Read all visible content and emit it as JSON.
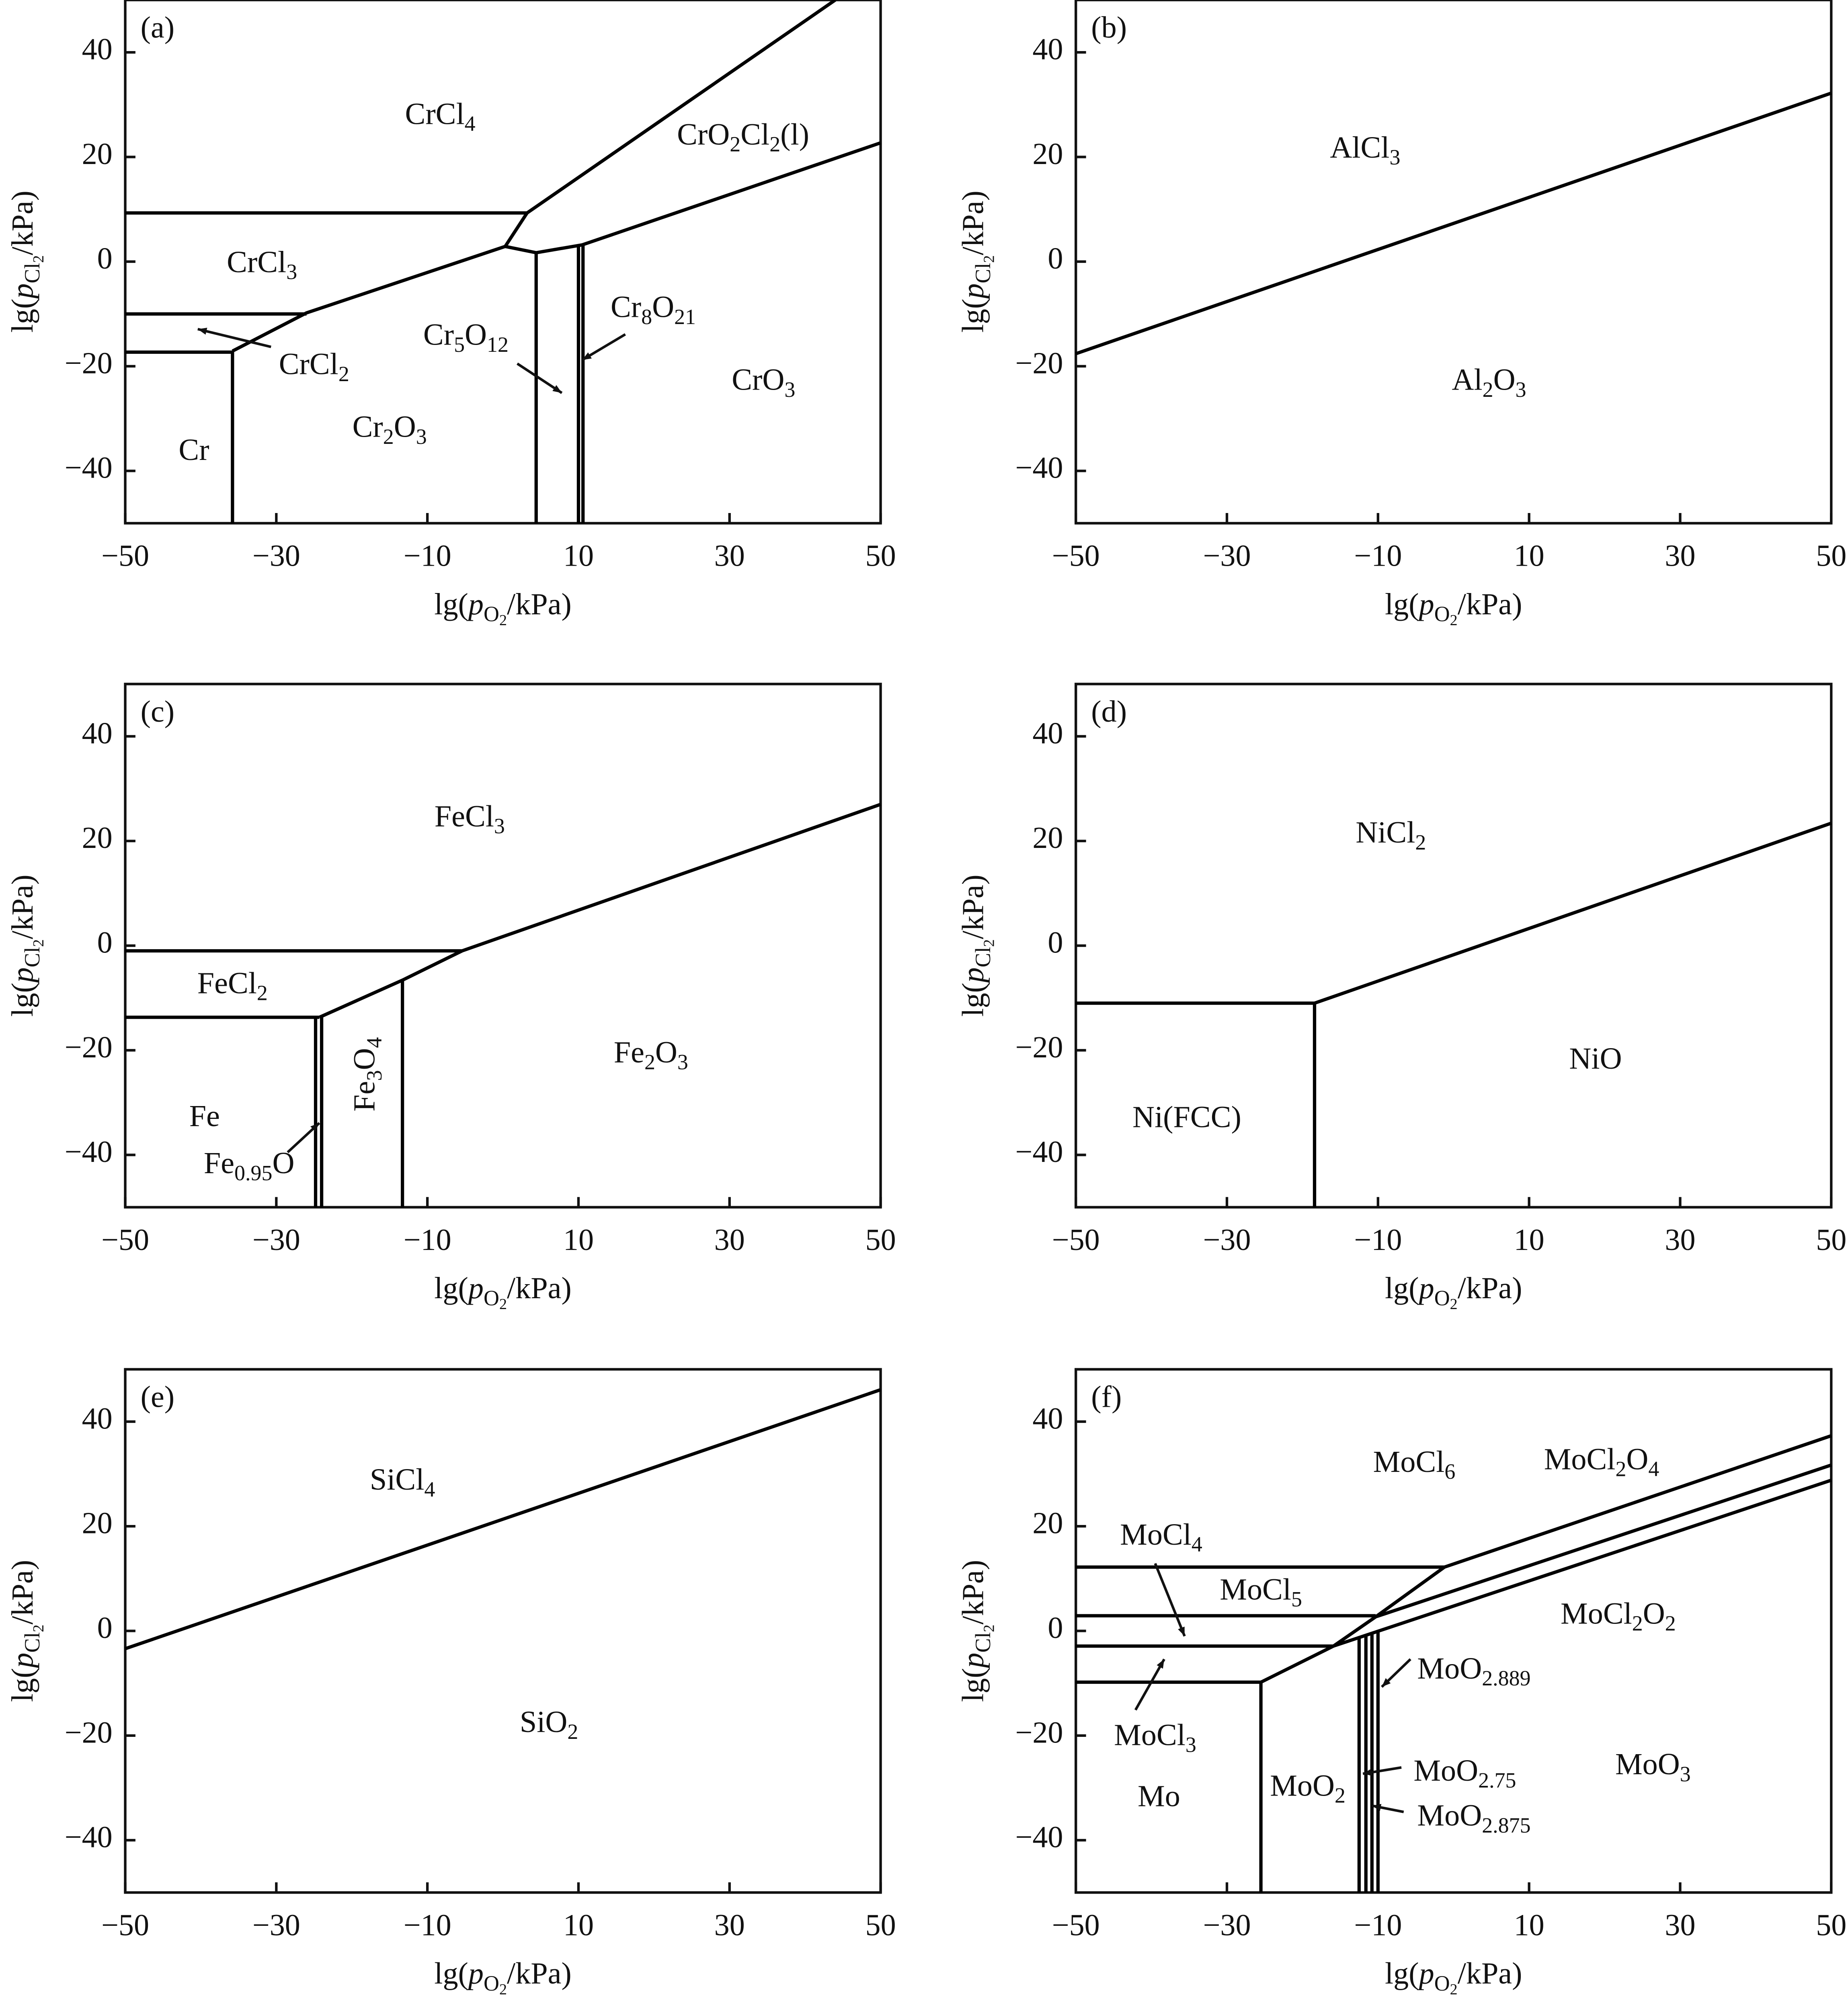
{
  "chart_data": [
    {
      "type": "line",
      "label": "(a)",
      "color": "#000000",
      "xlabel": {
        "parts": [
          "lg(",
          "p",
          "O",
          "2",
          "/kPa)"
        ],
        "styles": [
          "",
          "italic",
          "sub",
          "subsub",
          ""
        ]
      },
      "ylabel": {
        "parts": [
          "lg(",
          "p",
          "Cl",
          "2",
          "/kPa)"
        ],
        "styles": [
          "",
          "italic",
          "sub",
          "subsub",
          ""
        ]
      },
      "xlim": [
        -50,
        50
      ],
      "ylim": [
        -50,
        50
      ],
      "xticks": [
        {
          "value": -50,
          "label": "−50"
        },
        {
          "value": -30,
          "label": "−30"
        },
        {
          "value": -10,
          "label": "−10"
        },
        10,
        30,
        50
      ],
      "yticks": [
        {
          "value": -40,
          "label": "−40"
        },
        {
          "value": -20,
          "label": "−20"
        },
        0,
        20,
        40
      ],
      "series": [
        {
          "x": [
            -50,
            3.2
          ],
          "y": [
            9.3,
            9.3
          ]
        },
        {
          "x": [
            3.2,
            44
          ],
          "y": [
            9.3,
            50
          ]
        },
        {
          "x": [
            3.2,
            0.3,
            -26,
            -35.8
          ],
          "y": [
            9.3,
            2.9,
            -9.8,
            -17.1
          ]
        },
        {
          "x": [
            0.3,
            4.4,
            10.5,
            50
          ],
          "y": [
            2.9,
            1.7,
            3.2,
            22.7
          ]
        },
        {
          "x": [
            -50,
            -26
          ],
          "y": [
            -10,
            -10
          ]
        },
        {
          "x": [
            -50,
            -35.8
          ],
          "y": [
            -17.3,
            -17.3
          ]
        },
        {
          "x": [
            -35.8,
            -35.8
          ],
          "y": [
            -17.1,
            -50
          ]
        },
        {
          "x": [
            4.4,
            4.4
          ],
          "y": [
            1.7,
            -50
          ]
        },
        {
          "x": [
            10,
            10
          ],
          "y": [
            3,
            -50
          ]
        },
        {
          "x": [
            10.6,
            10.6
          ],
          "y": [
            3.2,
            -50
          ]
        }
      ],
      "annotations": [
        {
          "parts": [
            "CrCl",
            "4"
          ],
          "x": -8.3,
          "y": 27.6
        },
        {
          "parts": [
            "CrO",
            "2",
            "Cl",
            "2",
            "(l)"
          ],
          "x": 31.8,
          "y": 23.7
        },
        {
          "parts": [
            "CrCl",
            "3"
          ],
          "x": -31.9,
          "y": -0.7
        },
        {
          "parts": [
            "CrCl",
            "2"
          ],
          "x": -25,
          "y": -20.2,
          "arrow": [
            -30.7,
            -16.3,
            -40.4,
            -12.9
          ]
        },
        {
          "parts": [
            "Cr",
            "5",
            "O",
            "12"
          ],
          "x": -4.9,
          "y": -14.6,
          "arrow": [
            1.9,
            -19.5,
            7.8,
            -25.1
          ]
        },
        {
          "parts": [
            "Cr",
            "8",
            "O",
            "21"
          ],
          "x": 19.9,
          "y": -9.3,
          "arrow": [
            16.2,
            -13.9,
            10.5,
            -18.8
          ]
        },
        {
          "parts": [
            "CrO",
            "3"
          ],
          "x": 34.5,
          "y": -23.2
        },
        {
          "parts": [
            "Cr",
            "2",
            "O",
            "3"
          ],
          "x": -15,
          "y": -32.2
        },
        {
          "parts": [
            "Cr"
          ],
          "x": -40.9,
          "y": -36.6
        }
      ]
    },
    {
      "type": "line",
      "label": "(b)",
      "color": "#000000",
      "xlabel": {
        "parts": [
          "lg(",
          "p",
          "O",
          "2",
          "/kPa)"
        ],
        "styles": [
          "",
          "italic",
          "sub",
          "subsub",
          ""
        ]
      },
      "ylabel": {
        "parts": [
          "lg(",
          "p",
          "Cl",
          "2",
          "/kPa)"
        ],
        "styles": [
          "",
          "italic",
          "sub",
          "subsub",
          ""
        ]
      },
      "xlim": [
        -50,
        50
      ],
      "ylim": [
        -50,
        50
      ],
      "xticks": [
        {
          "value": -50,
          "label": "−50"
        },
        {
          "value": -30,
          "label": "−30"
        },
        {
          "value": -10,
          "label": "−10"
        },
        10,
        30,
        50
      ],
      "yticks": [
        {
          "value": -40,
          "label": "−40"
        },
        {
          "value": -20,
          "label": "−20"
        },
        0,
        20,
        40
      ],
      "series": [
        {
          "x": [
            -50,
            50
          ],
          "y": [
            -17.6,
            32.2
          ]
        }
      ],
      "annotations": [
        {
          "parts": [
            "AlCl",
            "3"
          ],
          "x": -11.7,
          "y": 21.2
        },
        {
          "parts": [
            "Al",
            "2",
            "O",
            "3"
          ],
          "x": 4.7,
          "y": -23.2
        }
      ]
    },
    {
      "type": "line",
      "label": "(c)",
      "color": "#000000",
      "xlabel": {
        "parts": [
          "lg(",
          "p",
          "O",
          "2",
          "/kPa)"
        ],
        "styles": [
          "",
          "italic",
          "sub",
          "subsub",
          ""
        ]
      },
      "ylabel": {
        "parts": [
          "lg(",
          "p",
          "Cl",
          "2",
          "/kPa)"
        ],
        "styles": [
          "",
          "italic",
          "sub",
          "subsub",
          ""
        ]
      },
      "xlim": [
        -50,
        50
      ],
      "ylim": [
        -50,
        50
      ],
      "xticks": [
        {
          "value": -50,
          "label": "−50"
        },
        {
          "value": -30,
          "label": "−30"
        },
        {
          "value": -10,
          "label": "−10"
        },
        10,
        30,
        50
      ],
      "yticks": [
        {
          "value": -40,
          "label": "−40"
        },
        {
          "value": -20,
          "label": "−20"
        },
        0,
        20,
        40
      ],
      "series": [
        {
          "x": [
            -50,
            -5.4
          ],
          "y": [
            -1,
            -1
          ]
        },
        {
          "x": [
            -5.4,
            50
          ],
          "y": [
            -1,
            27
          ]
        },
        {
          "x": [
            -5.4,
            -13.3,
            -24.3
          ],
          "y": [
            -1,
            -6.6,
            -13.7
          ]
        },
        {
          "x": [
            -50,
            -24.3
          ],
          "y": [
            -13.7,
            -13.7
          ]
        },
        {
          "x": [
            -24.8,
            -24.8
          ],
          "y": [
            -13.7,
            -50
          ]
        },
        {
          "x": [
            -24,
            -24
          ],
          "y": [
            -13.4,
            -50
          ]
        },
        {
          "x": [
            -13.3,
            -13.3
          ],
          "y": [
            -6.6,
            -50
          ]
        }
      ],
      "annotations": [
        {
          "parts": [
            "FeCl",
            "3"
          ],
          "x": -4.4,
          "y": 24.1
        },
        {
          "parts": [
            "FeCl",
            "2"
          ],
          "x": -35.8,
          "y": -7.8
        },
        {
          "parts": [
            "Fe",
            "3",
            "O",
            "4"
          ],
          "x": -17.9,
          "y": -24.6,
          "rotation": -90
        },
        {
          "parts": [
            "Fe",
            "2",
            "O",
            "3"
          ],
          "x": 19.6,
          "y": -21
        },
        {
          "parts": [
            "Fe"
          ],
          "x": -39.5,
          "y": -33.2
        },
        {
          "parts": [
            "Fe",
            "0.95",
            "O"
          ],
          "x": -33.6,
          "y": -42.2,
          "arrow": [
            -28.5,
            -39.5,
            -24.3,
            -33.9
          ]
        }
      ]
    },
    {
      "type": "line",
      "label": "(d)",
      "color": "#000000",
      "xlabel": {
        "parts": [
          "lg(",
          "p",
          "O",
          "2",
          "/kPa)"
        ],
        "styles": [
          "",
          "italic",
          "sub",
          "subsub",
          ""
        ]
      },
      "ylabel": {
        "parts": [
          "lg(",
          "p",
          "Cl",
          "2",
          "/kPa)"
        ],
        "styles": [
          "",
          "italic",
          "sub",
          "subsub",
          ""
        ]
      },
      "xlim": [
        -50,
        50
      ],
      "ylim": [
        -50,
        50
      ],
      "xticks": [
        {
          "value": -50,
          "label": "−50"
        },
        {
          "value": -30,
          "label": "−30"
        },
        {
          "value": -10,
          "label": "−10"
        },
        10,
        30,
        50
      ],
      "yticks": [
        {
          "value": -40,
          "label": "−40"
        },
        {
          "value": -20,
          "label": "−20"
        },
        0,
        20,
        40
      ],
      "series": [
        {
          "x": [
            -50,
            -18.4
          ],
          "y": [
            -11,
            -11
          ]
        },
        {
          "x": [
            -18.4,
            50
          ],
          "y": [
            -11,
            23.4
          ]
        },
        {
          "x": [
            -18.4,
            -18.4
          ],
          "y": [
            -11,
            -50
          ]
        }
      ],
      "annotations": [
        {
          "parts": [
            "NiCl",
            "2"
          ],
          "x": -8.3,
          "y": 21
        },
        {
          "parts": [
            "NiO"
          ],
          "x": 18.8,
          "y": -22.2
        },
        {
          "parts": [
            "Ni(FCC)"
          ],
          "x": -35.3,
          "y": -33.4
        }
      ]
    },
    {
      "type": "line",
      "label": "(e)",
      "color": "#000000",
      "xlabel": {
        "parts": [
          "lg(",
          "p",
          "O",
          "2",
          "/kPa)"
        ],
        "styles": [
          "",
          "italic",
          "sub",
          "subsub",
          ""
        ]
      },
      "ylabel": {
        "parts": [
          "lg(",
          "p",
          "Cl",
          "2",
          "/kPa)"
        ],
        "styles": [
          "",
          "italic",
          "sub",
          "subsub",
          ""
        ]
      },
      "xlim": [
        -50,
        50
      ],
      "ylim": [
        -50,
        50
      ],
      "xticks": [
        {
          "value": -50,
          "label": "−50"
        },
        {
          "value": -30,
          "label": "−30"
        },
        {
          "value": -10,
          "label": "−10"
        },
        10,
        30,
        50
      ],
      "yticks": [
        {
          "value": -40,
          "label": "−40"
        },
        {
          "value": -20,
          "label": "−20"
        },
        0,
        20,
        40
      ],
      "series": [
        {
          "x": [
            -50,
            50
          ],
          "y": [
            -3.4,
            46.1
          ]
        }
      ],
      "annotations": [
        {
          "parts": [
            "SiCl",
            "4"
          ],
          "x": -13.3,
          "y": 28.3
        },
        {
          "parts": [
            "SiO",
            "2"
          ],
          "x": 6.1,
          "y": -18
        }
      ]
    },
    {
      "type": "line",
      "label": "(f)",
      "color": "#000000",
      "xlabel": {
        "parts": [
          "lg(",
          "p",
          "O",
          "2",
          "/kPa)"
        ],
        "styles": [
          "",
          "italic",
          "sub",
          "subsub",
          ""
        ]
      },
      "ylabel": {
        "parts": [
          "lg(",
          "p",
          "Cl",
          "2",
          "/kPa)"
        ],
        "styles": [
          "",
          "italic",
          "sub",
          "subsub",
          ""
        ]
      },
      "xlim": [
        -50,
        50
      ],
      "ylim": [
        -50,
        50
      ],
      "xticks": [
        {
          "value": -50,
          "label": "−50"
        },
        {
          "value": -30,
          "label": "−30"
        },
        {
          "value": -10,
          "label": "−10"
        },
        10,
        30,
        50
      ],
      "yticks": [
        {
          "value": -40,
          "label": "−40"
        },
        {
          "value": -20,
          "label": "−20"
        },
        0,
        20,
        40
      ],
      "series": [
        {
          "x": [
            -50,
            -1.2
          ],
          "y": [
            12.2,
            12.2
          ]
        },
        {
          "x": [
            -1.2,
            50
          ],
          "y": [
            12.2,
            37.3
          ]
        },
        {
          "x": [
            -1.2,
            -10.3,
            -15.9,
            -25.5
          ],
          "y": [
            12.2,
            2.7,
            -2.9,
            -9.8
          ]
        },
        {
          "x": [
            -10.3,
            50
          ],
          "y": [
            2.7,
            31.7
          ]
        },
        {
          "x": [
            -15.9,
            50
          ],
          "y": [
            -2.9,
            28.8
          ]
        },
        {
          "x": [
            -50,
            -10.3
          ],
          "y": [
            2.9,
            2.9
          ]
        },
        {
          "x": [
            -50,
            -15.9
          ],
          "y": [
            -2.9,
            -2.9
          ]
        },
        {
          "x": [
            -50,
            -25.5
          ],
          "y": [
            -9.8,
            -9.8
          ]
        },
        {
          "x": [
            -25.5,
            -25.5
          ],
          "y": [
            -9.8,
            -50
          ]
        },
        {
          "x": [
            -12.5,
            -12.5
          ],
          "y": [
            -1.3,
            -50
          ]
        },
        {
          "x": [
            -11.6,
            -11.6
          ],
          "y": [
            -0.8,
            -50
          ]
        },
        {
          "x": [
            -10.8,
            -10.8
          ],
          "y": [
            -0.45,
            -50
          ]
        },
        {
          "x": [
            -10,
            -10
          ],
          "y": [
            -0.1,
            -50
          ]
        }
      ],
      "annotations": [
        {
          "parts": [
            "MoCl",
            "6"
          ],
          "x": -5.2,
          "y": 31.7
        },
        {
          "parts": [
            "MoCl",
            "2",
            "O",
            "4"
          ],
          "x": 19.6,
          "y": 32.2
        },
        {
          "parts": [
            "MoCl",
            "4"
          ],
          "x": -38.7,
          "y": 17.8,
          "arrow": [
            -39.5,
            12.9,
            -35.6,
            -1
          ]
        },
        {
          "parts": [
            "MoCl",
            "5"
          ],
          "x": -25.5,
          "y": 7.3
        },
        {
          "parts": [
            "MoCl",
            "2",
            "O",
            "2"
          ],
          "x": 21.8,
          "y": 2.7
        },
        {
          "parts": [
            "MoCl",
            "3"
          ],
          "x": -39.5,
          "y": -20.5,
          "arrow": [
            -42.1,
            -15.1,
            -38.3,
            -5.4
          ]
        },
        {
          "parts": [
            "MoO",
            "2.889"
          ],
          "x": 2.7,
          "y": -7.8,
          "arrow": [
            -5.7,
            -5.4,
            -9.5,
            -10.7
          ]
        },
        {
          "parts": [
            "MoO",
            "2"
          ],
          "x": -19.3,
          "y": -30.2
        },
        {
          "parts": [
            "MoO",
            "2.75"
          ],
          "x": 1.5,
          "y": -27.3,
          "arrow": [
            -6.9,
            -26.1,
            -12,
            -27.3
          ]
        },
        {
          "parts": [
            "MoO",
            "2.875"
          ],
          "x": 2.7,
          "y": -35.9,
          "arrow": [
            -6.6,
            -34.6,
            -10.8,
            -33.4
          ]
        },
        {
          "parts": [
            "MoO",
            "3"
          ],
          "x": 26.4,
          "y": -26.1
        },
        {
          "parts": [
            "Mo"
          ],
          "x": -39,
          "y": -32.2
        }
      ]
    }
  ]
}
